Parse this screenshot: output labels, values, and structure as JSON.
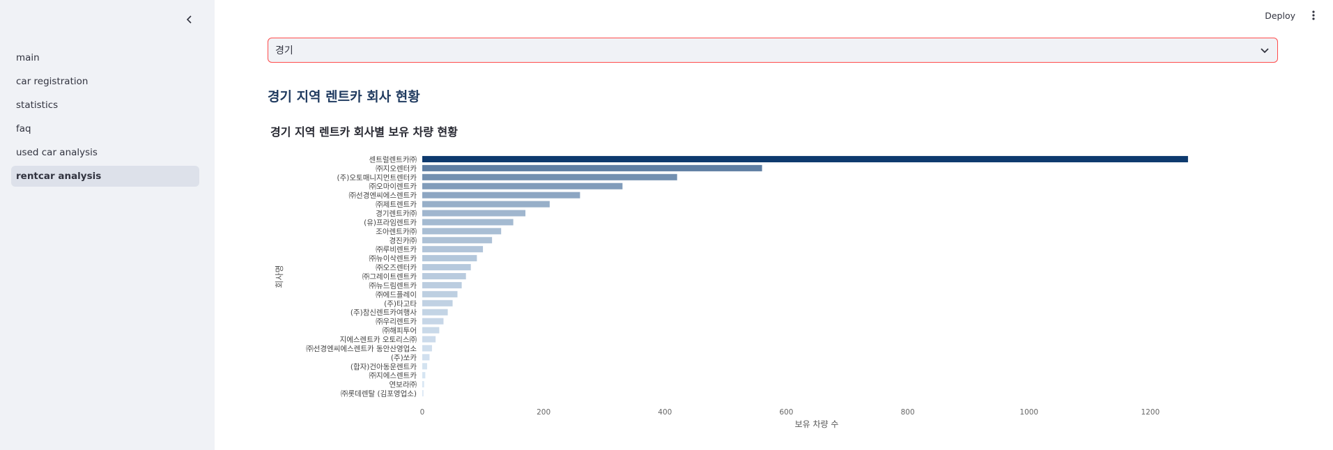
{
  "sidebar": {
    "items": [
      {
        "label": "main",
        "active": false
      },
      {
        "label": "car registration",
        "active": false
      },
      {
        "label": "statistics",
        "active": false
      },
      {
        "label": "faq",
        "active": false
      },
      {
        "label": "used car analysis",
        "active": false
      },
      {
        "label": "rentcar analysis",
        "active": true
      }
    ],
    "collapse_icon": "chevron-left-icon"
  },
  "header": {
    "deploy_label": "Deploy",
    "menu_icon": "vertical-dots-icon"
  },
  "region_select": {
    "value": "경기",
    "chevron_icon": "chevron-down-icon"
  },
  "page": {
    "heading": "경기 지역 렌트카 회사 현황"
  },
  "chart_data": {
    "type": "bar",
    "orientation": "horizontal",
    "title": "경기 지역 렌트카 회사별 보유 차량 현황",
    "xlabel": "보유 차량 수",
    "ylabel": "회사명",
    "xlim": [
      0,
      1300
    ],
    "x_ticks": [
      0,
      200,
      400,
      600,
      800,
      1000,
      1200
    ],
    "y_tick_labels": [
      "센트럴렌트카㈜",
      "㈜지오렌터카",
      "(주)오토매니지먼트렌터카",
      "㈜오마이렌트카",
      "㈜선경엔씨에스렌트카",
      "㈜제트렌트카",
      "경기렌트카㈜",
      "(유)프라임렌트카",
      "조아렌트카㈜",
      "경진카㈜",
      "㈜루비렌트카",
      "㈜뉴이삭렌트카",
      "㈜오즈렌터카",
      "㈜그레이트렌트카",
      "㈜뉴드림렌트카",
      "㈜에드플레이",
      "(주)타고타",
      "(주)참신렌트카여행사",
      "㈜우리렌트카",
      "㈜해피투어",
      "지에스렌트카 오토리스㈜",
      "㈜선경엔씨에스렌트카 동안산영업소",
      "(주)쏘카",
      "(합자)건아동운렌트카",
      "㈜지에스렌트카",
      "연보라㈜",
      "㈜롯데렌탈 (김포영업소)"
    ],
    "values": [
      1262,
      560,
      420,
      330,
      260,
      210,
      170,
      150,
      130,
      115,
      100,
      90,
      80,
      72,
      65,
      58,
      50,
      42,
      35,
      28,
      22,
      16,
      12,
      8,
      5,
      3,
      2
    ],
    "bar_color_max": "#0e3a6e",
    "bar_color_min": "#deebf7",
    "grid": false
  }
}
